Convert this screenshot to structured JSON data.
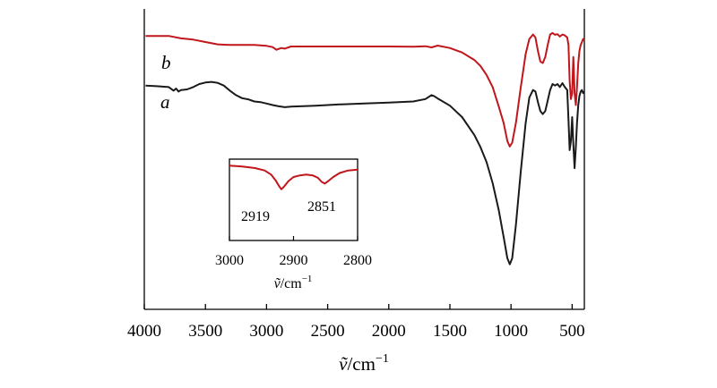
{
  "chart_data": {
    "type": "line",
    "main": {
      "xlim": [
        4000,
        400
      ],
      "xticks": [
        4000,
        3500,
        3000,
        2500,
        2000,
        1500,
        1000,
        500
      ],
      "xlabel_symbol": "ṽ",
      "xlabel_unit": "/cm",
      "xlabel_exp": "−1",
      "ylabel": "",
      "grid": false,
      "series": [
        {
          "name": "b",
          "color": "#c0161c",
          "x": [
            3990,
            3800,
            3700,
            3600,
            3500,
            3400,
            3300,
            3200,
            3100,
            3000,
            2950,
            2919,
            2880,
            2851,
            2800,
            2600,
            2400,
            2200,
            2000,
            1800,
            1700,
            1650,
            1600,
            1500,
            1400,
            1300,
            1250,
            1200,
            1150,
            1100,
            1060,
            1030,
            1010,
            990,
            960,
            920,
            880,
            850,
            820,
            800,
            780,
            760,
            740,
            720,
            700,
            680,
            660,
            640,
            620,
            600,
            580,
            560,
            540,
            530,
            520,
            510,
            500,
            490,
            480,
            470,
            460,
            450,
            440,
            430,
            420,
            410,
            400
          ],
          "y": [
            91,
            91,
            90.2,
            89.8,
            89,
            88.2,
            88,
            88,
            88,
            87.7,
            87.3,
            86.4,
            87,
            86.8,
            87.5,
            87.5,
            87.5,
            87.5,
            87.5,
            87.4,
            87.6,
            87.2,
            87.8,
            87,
            85.5,
            83,
            81,
            78,
            74,
            67.5,
            62,
            56,
            54.2,
            55.5,
            62,
            74,
            85,
            90,
            91.5,
            90.5,
            86,
            82.5,
            82,
            84,
            88,
            91.5,
            92,
            91.4,
            91.6,
            90.8,
            91.5,
            91.2,
            90.5,
            88,
            76,
            70,
            72,
            84,
            72,
            68,
            74,
            82,
            86,
            88,
            89,
            90,
            89.5
          ]
        },
        {
          "name": "a",
          "color": "#1a1a1a",
          "x": [
            3990,
            3900,
            3800,
            3760,
            3740,
            3720,
            3700,
            3650,
            3600,
            3550,
            3500,
            3450,
            3400,
            3350,
            3300,
            3250,
            3200,
            3150,
            3100,
            3050,
            3000,
            2950,
            2900,
            2850,
            2800,
            2600,
            2400,
            2200,
            2000,
            1800,
            1700,
            1650,
            1630,
            1600,
            1500,
            1400,
            1300,
            1250,
            1200,
            1150,
            1100,
            1060,
            1030,
            1010,
            990,
            960,
            920,
            880,
            850,
            820,
            800,
            780,
            760,
            740,
            720,
            700,
            680,
            660,
            640,
            620,
            600,
            580,
            560,
            540,
            530,
            520,
            510,
            500,
            490,
            480,
            470,
            460,
            450,
            440,
            430,
            420,
            410,
            400
          ],
          "y": [
            74.5,
            74.3,
            74,
            72.8,
            73.5,
            72.5,
            73,
            73.2,
            74,
            75,
            75.5,
            75.7,
            75.4,
            74.5,
            72.8,
            71.3,
            70.3,
            69.9,
            69.2,
            69,
            68.5,
            68,
            67.6,
            67.3,
            67.5,
            67.8,
            68.2,
            68.5,
            68.8,
            69.2,
            70,
            71.3,
            71,
            70.2,
            67.8,
            64,
            58,
            54,
            49,
            42,
            33,
            24,
            17,
            15,
            17,
            28,
            46,
            62,
            70.5,
            73,
            72.5,
            69,
            66,
            65,
            66,
            69.5,
            73,
            75,
            74.5,
            75,
            74,
            75.3,
            74,
            73,
            63,
            53,
            56,
            64,
            55,
            47,
            54,
            62,
            68,
            71,
            72.5,
            73,
            72,
            72.5
          ]
        }
      ]
    },
    "inset": {
      "xlim": [
        3000,
        2800
      ],
      "xticks": [
        3000,
        2900,
        2800
      ],
      "xlabel_symbol": "ṽ",
      "xlabel_unit": "/cm",
      "xlabel_exp": "−1",
      "series": [
        {
          "name": "b",
          "color": "#c0161c",
          "x": [
            3000,
            2980,
            2960,
            2945,
            2935,
            2928,
            2922,
            2919,
            2915,
            2908,
            2900,
            2890,
            2880,
            2870,
            2862,
            2856,
            2851,
            2846,
            2838,
            2828,
            2815,
            2800
          ],
          "y": [
            0.92,
            0.91,
            0.89,
            0.86,
            0.81,
            0.74,
            0.66,
            0.63,
            0.66,
            0.73,
            0.78,
            0.8,
            0.81,
            0.8,
            0.77,
            0.72,
            0.7,
            0.73,
            0.78,
            0.83,
            0.86,
            0.87
          ]
        }
      ],
      "annotations": [
        {
          "text": "2919",
          "x": 2919
        },
        {
          "text": "2851",
          "x": 2851
        }
      ]
    }
  }
}
